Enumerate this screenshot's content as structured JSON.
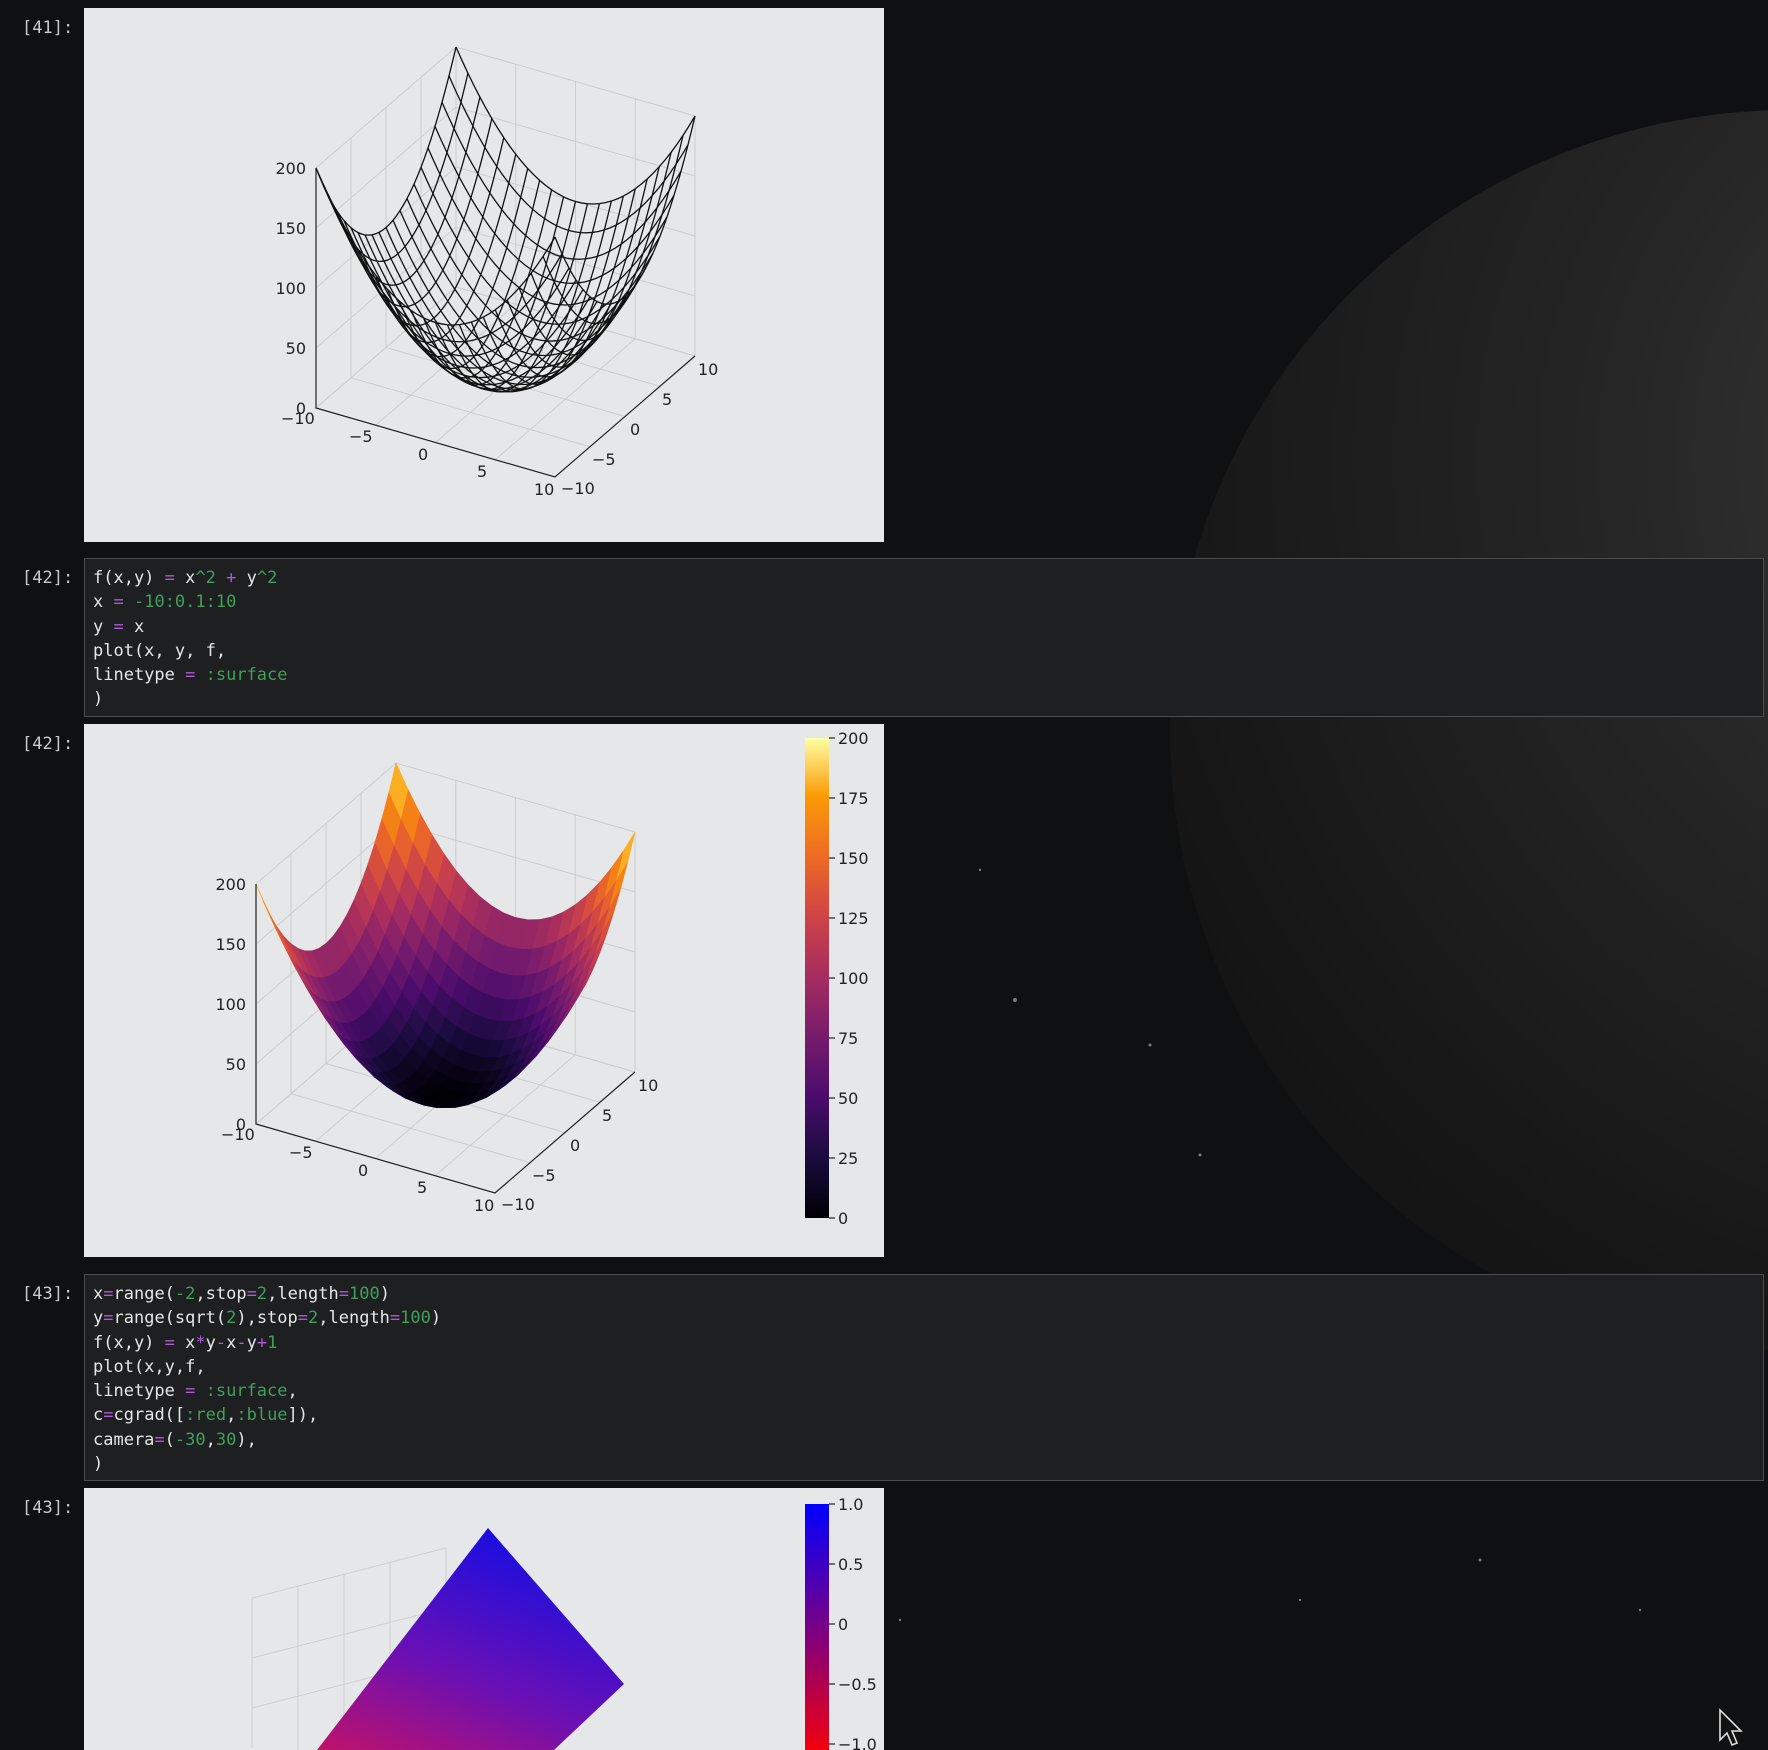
{
  "theme": {
    "background": "#0f1011",
    "plot_bg": "#e6e7e8",
    "code_bg": "#1d1f20",
    "keyword_color": "#b05ad8",
    "literal_color": "#3fa05a"
  },
  "cells": [
    {
      "prompt": "[41]:"
    },
    {
      "prompt": "[42]:",
      "code": [
        [
          {
            "t": "f(x,y) "
          },
          {
            "t": "=",
            "c": "op"
          },
          {
            "t": " x"
          },
          {
            "t": "^2",
            "c": "num"
          },
          {
            "t": " "
          },
          {
            "t": "+",
            "c": "op"
          },
          {
            "t": " y"
          },
          {
            "t": "^2",
            "c": "num"
          }
        ],
        [
          {
            "t": "x "
          },
          {
            "t": "=",
            "c": "op"
          },
          {
            "t": " "
          },
          {
            "t": "-10:0.1:10",
            "c": "num"
          }
        ],
        [
          {
            "t": "y "
          },
          {
            "t": "=",
            "c": "op"
          },
          {
            "t": " x"
          }
        ],
        [
          {
            "t": "plot(x, y, f,"
          }
        ],
        [
          {
            "t": "linetype "
          },
          {
            "t": "=",
            "c": "op"
          },
          {
            "t": " "
          },
          {
            "t": ":surface",
            "c": "sym"
          }
        ],
        [
          {
            "t": ")"
          }
        ]
      ]
    },
    {
      "prompt": "[42]:"
    },
    {
      "prompt": "[43]:",
      "code": [
        [
          {
            "t": "x"
          },
          {
            "t": "=",
            "c": "op"
          },
          {
            "t": "range("
          },
          {
            "t": "-2",
            "c": "num"
          },
          {
            "t": ",stop"
          },
          {
            "t": "=",
            "c": "op"
          },
          {
            "t": "2",
            "c": "num"
          },
          {
            "t": ",length"
          },
          {
            "t": "=",
            "c": "op"
          },
          {
            "t": "100",
            "c": "num"
          },
          {
            "t": ")"
          }
        ],
        [
          {
            "t": "y"
          },
          {
            "t": "=",
            "c": "op"
          },
          {
            "t": "range(sqrt("
          },
          {
            "t": "2",
            "c": "num"
          },
          {
            "t": "),stop"
          },
          {
            "t": "=",
            "c": "op"
          },
          {
            "t": "2",
            "c": "num"
          },
          {
            "t": ",length"
          },
          {
            "t": "=",
            "c": "op"
          },
          {
            "t": "100",
            "c": "num"
          },
          {
            "t": ")"
          }
        ],
        [
          {
            "t": "f(x,y) "
          },
          {
            "t": "=",
            "c": "op"
          },
          {
            "t": " x"
          },
          {
            "t": "*",
            "c": "op"
          },
          {
            "t": "y"
          },
          {
            "t": "-",
            "c": "op"
          },
          {
            "t": "x"
          },
          {
            "t": "-",
            "c": "op"
          },
          {
            "t": "y"
          },
          {
            "t": "+",
            "c": "op"
          },
          {
            "t": "1",
            "c": "num"
          }
        ],
        [
          {
            "t": "plot(x,y,f,"
          }
        ],
        [
          {
            "t": "linetype "
          },
          {
            "t": "=",
            "c": "op"
          },
          {
            "t": " "
          },
          {
            "t": ":surface",
            "c": "sym"
          },
          {
            "t": ","
          }
        ],
        [
          {
            "t": "c"
          },
          {
            "t": "=",
            "c": "op"
          },
          {
            "t": "cgrad(["
          },
          {
            "t": ":red",
            "c": "sym"
          },
          {
            "t": ","
          },
          {
            "t": ":blue",
            "c": "sym"
          },
          {
            "t": "]),"
          }
        ],
        [
          {
            "t": "camera"
          },
          {
            "t": "=",
            "c": "op"
          },
          {
            "t": "("
          },
          {
            "t": "-30",
            "c": "num"
          },
          {
            "t": ","
          },
          {
            "t": "30",
            "c": "num"
          },
          {
            "t": "),"
          }
        ],
        [
          {
            "t": ")"
          }
        ]
      ]
    },
    {
      "prompt": "[43]:"
    }
  ],
  "plots": {
    "wireframe": {
      "z_ticks": [
        "200",
        "150",
        "100",
        "50",
        "0"
      ],
      "x_ticks": [
        "−10",
        "−5",
        "0",
        "5",
        "10"
      ],
      "y_ticks": [
        "−10",
        "−5",
        "0",
        "5",
        "10"
      ]
    },
    "surface": {
      "z_ticks": [
        "200",
        "150",
        "100",
        "50",
        "0"
      ],
      "x_ticks": [
        "−10",
        "−5",
        "0",
        "5",
        "10"
      ],
      "y_ticks": [
        "−10",
        "−5",
        "0",
        "5",
        "10"
      ],
      "colorbar_ticks": [
        "200",
        "175",
        "150",
        "125",
        "100",
        "75",
        "50",
        "25",
        "0"
      ]
    },
    "plane": {
      "colorbar_ticks": [
        "1.0",
        "0.5",
        "0",
        "−0.5",
        "−1.0"
      ]
    }
  },
  "chart_data": [
    {
      "type": "surface",
      "title": "",
      "function": "f(x,y) = x^2 + y^2",
      "style": "wireframe",
      "x_range": [
        -10,
        10
      ],
      "y_range": [
        -10,
        10
      ],
      "zlim": [
        0,
        200
      ],
      "x_ticks": [
        -10,
        -5,
        0,
        5,
        10
      ],
      "y_ticks": [
        -10,
        -5,
        0,
        5,
        10
      ],
      "z_ticks": [
        0,
        50,
        100,
        150,
        200
      ],
      "grid": true
    },
    {
      "type": "surface",
      "title": "",
      "function": "f(x,y) = x^2 + y^2",
      "colormap": "inferno",
      "x_range": [
        -10,
        10
      ],
      "y_range": [
        -10,
        10
      ],
      "zlim": [
        0,
        200
      ],
      "x_ticks": [
        -10,
        -5,
        0,
        5,
        10
      ],
      "y_ticks": [
        -10,
        -5,
        0,
        5,
        10
      ],
      "z_ticks": [
        0,
        50,
        100,
        150,
        200
      ],
      "colorbar": {
        "range": [
          0,
          200
        ],
        "ticks": [
          0,
          25,
          50,
          75,
          100,
          125,
          150,
          175,
          200
        ]
      },
      "grid": true
    },
    {
      "type": "surface",
      "title": "",
      "function": "f(x,y) = x*y - x - y + 1",
      "colormap": [
        "red",
        "blue"
      ],
      "x_range": [
        -2,
        2
      ],
      "y_range": [
        1.414,
        2
      ],
      "camera": [
        -30,
        30
      ],
      "colorbar": {
        "range": [
          -1,
          1
        ],
        "ticks": [
          -1.0,
          -0.5,
          0,
          0.5,
          1.0
        ]
      },
      "grid": true
    }
  ]
}
